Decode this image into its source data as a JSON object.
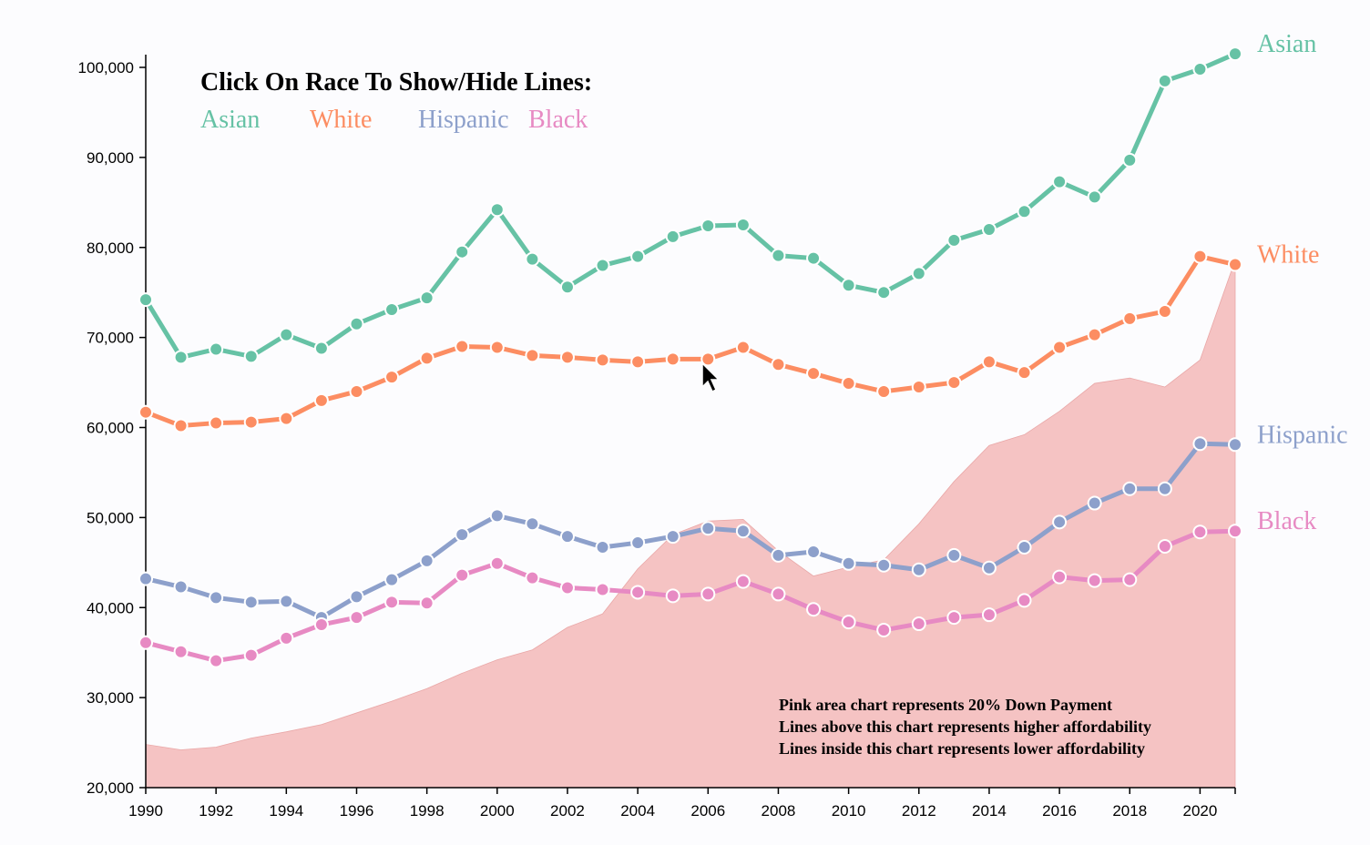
{
  "chart_data": {
    "type": "line",
    "title": "Click On Race To Show/Hide Lines:",
    "xlabel": "",
    "ylabel": "",
    "xlim": [
      1990,
      2021
    ],
    "ylim": [
      20000,
      100000
    ],
    "x": [
      1990,
      1991,
      1992,
      1993,
      1994,
      1995,
      1996,
      1997,
      1998,
      1999,
      2000,
      2001,
      2002,
      2003,
      2004,
      2005,
      2006,
      2007,
      2008,
      2009,
      2010,
      2011,
      2012,
      2013,
      2014,
      2015,
      2016,
      2017,
      2018,
      2019,
      2020,
      2021
    ],
    "x_tick_labels": [
      "1990",
      "1992",
      "1994",
      "1996",
      "1998",
      "2000",
      "2002",
      "2004",
      "2006",
      "2008",
      "2010",
      "2012",
      "2014",
      "2016",
      "2018",
      "2020"
    ],
    "y_tick_labels": [
      "20,000",
      "30,000",
      "40,000",
      "50,000",
      "60,000",
      "70,000",
      "80,000",
      "90,000",
      "100,000"
    ],
    "series": [
      {
        "name": "Asian",
        "color": "#66c2a5",
        "values": [
          74200,
          67800,
          68700,
          67900,
          70300,
          68800,
          71500,
          73100,
          74400,
          79500,
          84200,
          78700,
          75600,
          78000,
          79000,
          81200,
          82400,
          82500,
          79100,
          78800,
          75800,
          75000,
          77100,
          80800,
          82000,
          84000,
          87300,
          85600,
          89700,
          98500,
          99800,
          101500
        ]
      },
      {
        "name": "White",
        "color": "#fc8d62",
        "values": [
          61700,
          60200,
          60500,
          60600,
          61000,
          63000,
          64000,
          65600,
          67700,
          69000,
          68900,
          68000,
          67800,
          67500,
          67300,
          67600,
          67600,
          68900,
          67000,
          66000,
          64900,
          64000,
          64500,
          65000,
          67300,
          66100,
          68900,
          70300,
          72100,
          72900,
          79000,
          78100
        ]
      },
      {
        "name": "Hispanic",
        "color": "#8da0cb",
        "values": [
          43200,
          42300,
          41100,
          40600,
          40700,
          38900,
          41200,
          43100,
          45200,
          48100,
          50200,
          49300,
          47900,
          46700,
          47200,
          47900,
          48800,
          48500,
          45800,
          46200,
          44900,
          44700,
          44200,
          45800,
          44400,
          46700,
          49500,
          51600,
          53200,
          53200,
          58200,
          58100
        ]
      },
      {
        "name": "Black",
        "color": "#e78ac3",
        "values": [
          36100,
          35100,
          34100,
          34700,
          36600,
          38100,
          38900,
          40600,
          40500,
          43600,
          44900,
          43300,
          42200,
          42000,
          41700,
          41300,
          41500,
          42900,
          41500,
          39800,
          38400,
          37500,
          38200,
          38900,
          39200,
          40800,
          43400,
          43000,
          43100,
          46800,
          48400,
          48500
        ]
      }
    ],
    "down_payment_area": {
      "color": "#f3b9b9",
      "values": [
        24800,
        24200,
        24500,
        25500,
        26200,
        27000,
        28300,
        29600,
        31000,
        32700,
        34200,
        35300,
        37800,
        39300,
        44300,
        48100,
        49600,
        49800,
        46300,
        43500,
        44500,
        45300,
        49300,
        54000,
        58000,
        59200,
        61800,
        64900,
        65500,
        64500,
        67500,
        78600
      ]
    },
    "annotations": [
      "Pink area chart represents 20% Down Payment",
      "Lines above this chart represents higher affordability",
      "Lines inside this chart represents lower affordability"
    ]
  }
}
